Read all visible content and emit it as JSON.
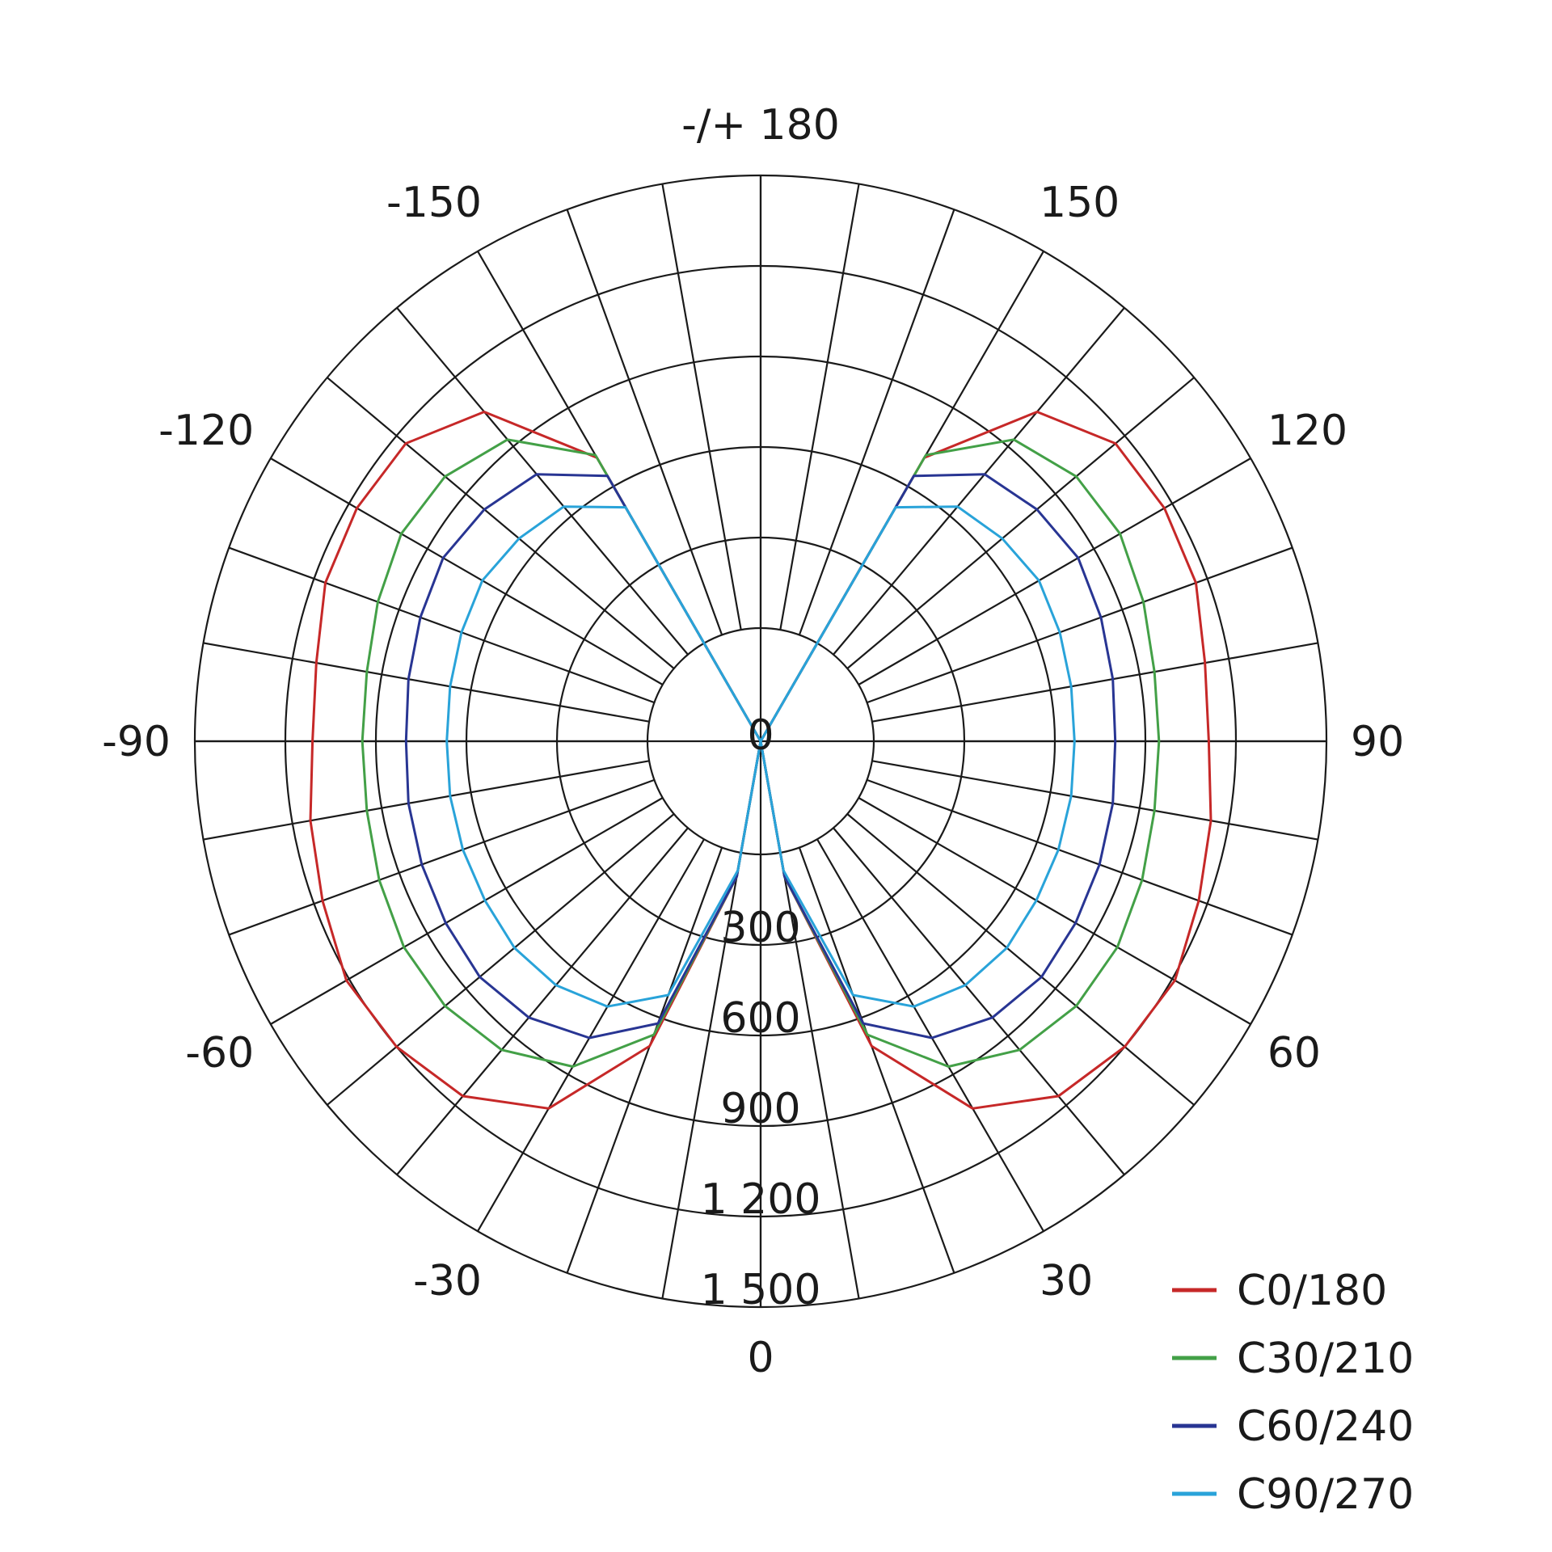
{
  "chart_data": {
    "type": "polar",
    "title": "",
    "angle_labels": [
      {
        "angle": 180,
        "text": "-/+ 180"
      },
      {
        "angle": -150,
        "text": "-150"
      },
      {
        "angle": 150,
        "text": "150"
      },
      {
        "angle": -120,
        "text": "-120"
      },
      {
        "angle": 120,
        "text": "120"
      },
      {
        "angle": -90,
        "text": "-90"
      },
      {
        "angle": 90,
        "text": "90"
      },
      {
        "angle": -60,
        "text": "-60"
      },
      {
        "angle": 60,
        "text": "60"
      },
      {
        "angle": -30,
        "text": "-30"
      },
      {
        "angle": 30,
        "text": "30"
      },
      {
        "angle": 0,
        "text": "0"
      }
    ],
    "radial_axis": {
      "min": 0,
      "max": 1500,
      "ticks": [
        0,
        300,
        600,
        900,
        1200,
        1500
      ],
      "tick_labels": [
        "0",
        "300",
        "600",
        "900",
        "1 200",
        "1 500"
      ]
    },
    "grid": true,
    "angular_gridline_step_deg": 10,
    "legend_position": "bottom-right",
    "series": [
      {
        "name": "C0/180",
        "color": "#c62828",
        "angles": [
          0,
          10,
          20,
          30,
          40,
          50,
          60,
          70,
          80,
          90,
          100,
          110,
          120,
          130,
          140,
          150,
          160
        ],
        "values": [
          0,
          80,
          700,
          1030,
          1160,
          1200,
          1210,
          1170,
          1140,
          1110,
          1120,
          1160,
          1170,
          1160,
          1050,
          710,
          0
        ]
      },
      {
        "name": "C30/210",
        "color": "#43a047",
        "angles": [
          0,
          10,
          20,
          30,
          40,
          50,
          60,
          70,
          80,
          90,
          100,
          110,
          120,
          130,
          140,
          150,
          160
        ],
        "values": [
          0,
          80,
          660,
          870,
          960,
          990,
          990,
          970,
          950,
          945,
          950,
          975,
          1000,
          990,
          930,
          720,
          0
        ]
      },
      {
        "name": "C60/240",
        "color": "#283593",
        "angles": [
          0,
          10,
          20,
          30,
          40,
          50,
          60,
          70,
          80,
          90,
          100,
          110,
          120,
          130,
          140,
          150,
          160
        ],
        "values": [
          0,
          80,
          620,
          760,
          820,
          840,
          830,
          820,
          810,
          800,
          810,
          825,
          840,
          820,
          780,
          640,
          0
        ]
      },
      {
        "name": "C90/270",
        "color": "#29a3d9",
        "angles": [
          0,
          10,
          20,
          30,
          40,
          50,
          60,
          70,
          80,
          90,
          100,
          110,
          120,
          130,
          140,
          150,
          160
        ],
        "values": [
          0,
          60,
          520,
          640,
          680,
          690,
          680,
          675,
          670,
          665,
          670,
          680,
          690,
          670,
          640,
          520,
          0
        ]
      }
    ]
  }
}
